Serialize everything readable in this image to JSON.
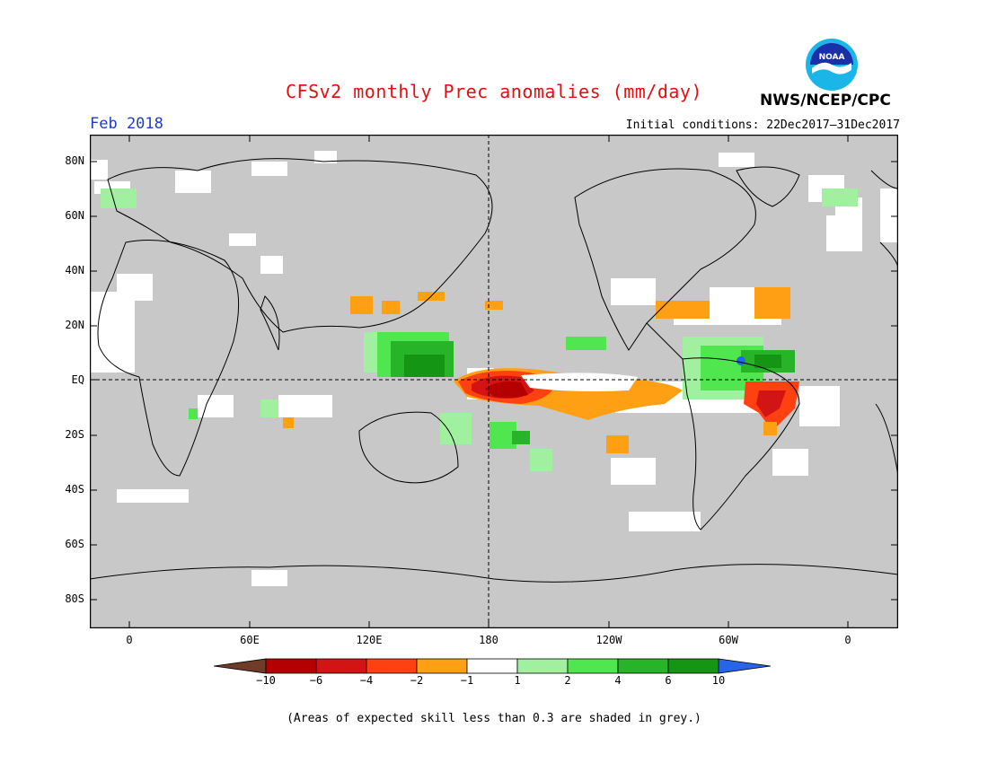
{
  "header": {
    "title": "CFSv2 monthly Prec anomalies (mm/day)",
    "period": "Feb 2018",
    "initial_conditions": "Initial conditions: 22Dec2017–31Dec2017",
    "organization": "NWS/NCEP/CPC",
    "logo_text": "NOAA"
  },
  "map": {
    "lat_labels": [
      "80N",
      "60N",
      "40N",
      "20N",
      "EQ",
      "20S",
      "40S",
      "60S",
      "80S"
    ],
    "lon_labels": [
      "0",
      "60E",
      "120E",
      "180",
      "120W",
      "60W",
      "0"
    ],
    "colors": {
      "grey_mask": "#c8c8c8",
      "coast": "#000000",
      "dark_red": "#b40000",
      "red": "#d21414",
      "orange_red": "#ff4010",
      "orange": "#ffa014",
      "light_green": "#8cf08c",
      "green": "#50d250",
      "dark_green": "#1ea01e",
      "blue": "#2864e6",
      "brown": "#6e3c28"
    }
  },
  "colorbar": {
    "labels": [
      "−10",
      "−6",
      "−4",
      "−2",
      "−1",
      "1",
      "2",
      "4",
      "6",
      "10"
    ],
    "colors": [
      "#6e3c28",
      "#b40000",
      "#d21414",
      "#ff4010",
      "#ffa014",
      "#ffffff",
      "#a0f0a0",
      "#50e650",
      "#28b428",
      "#149614",
      "#2864e6"
    ]
  },
  "footnote": "(Areas of expected skill less than 0.3 are shaded in grey.)"
}
